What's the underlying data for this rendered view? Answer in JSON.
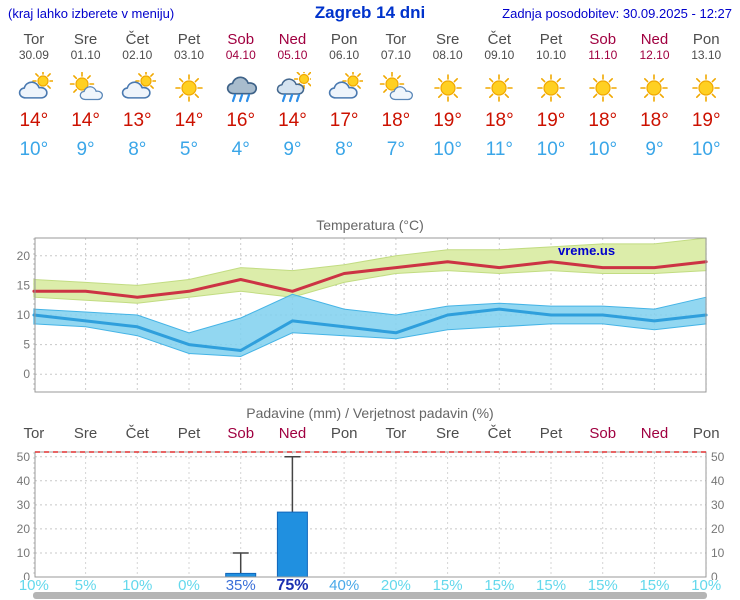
{
  "header": {
    "hint": "(kraj lahko izberete v meniju)",
    "title": "Zagreb 14 dni",
    "updated": "Zadnja posodobitev: 30.09.2025 - 12:27"
  },
  "colors": {
    "header_blue": "#0000cc",
    "title_blue": "#0033cc",
    "weekday": "#4d4d4d",
    "weekend": "#a00040",
    "tmax": "#cc1100",
    "tmin": "#3aa6e8",
    "max_line": "#cc3344",
    "min_line": "#2f9fdc",
    "max_band": "#dcedaa",
    "min_band": "#7fd0ef",
    "bar_blue": "#2090e0"
  },
  "days": [
    {
      "name": "Tor",
      "date": "30.09",
      "weekend": false,
      "icon": "cloud-sun",
      "tmax": "14°",
      "tmin": "10°"
    },
    {
      "name": "Sre",
      "date": "01.10",
      "weekend": false,
      "icon": "sun-cloud",
      "tmax": "14°",
      "tmin": "9°"
    },
    {
      "name": "Čet",
      "date": "02.10",
      "weekend": false,
      "icon": "cloud-sun",
      "tmax": "13°",
      "tmin": "8°"
    },
    {
      "name": "Pet",
      "date": "03.10",
      "weekend": false,
      "icon": "sun",
      "tmax": "14°",
      "tmin": "5°"
    },
    {
      "name": "Sob",
      "date": "04.10",
      "weekend": true,
      "icon": "rain",
      "tmax": "16°",
      "tmin": "4°"
    },
    {
      "name": "Ned",
      "date": "05.10",
      "weekend": true,
      "icon": "rain-sun",
      "tmax": "14°",
      "tmin": "9°"
    },
    {
      "name": "Pon",
      "date": "06.10",
      "weekend": false,
      "icon": "cloud-sun",
      "tmax": "17°",
      "tmin": "8°"
    },
    {
      "name": "Tor",
      "date": "07.10",
      "weekend": false,
      "icon": "sun-cloud",
      "tmax": "18°",
      "tmin": "7°"
    },
    {
      "name": "Sre",
      "date": "08.10",
      "weekend": false,
      "icon": "sun",
      "tmax": "19°",
      "tmin": "10°"
    },
    {
      "name": "Čet",
      "date": "09.10",
      "weekend": false,
      "icon": "sun",
      "tmax": "18°",
      "tmin": "11°"
    },
    {
      "name": "Pet",
      "date": "10.10",
      "weekend": false,
      "icon": "sun",
      "tmax": "19°",
      "tmin": "10°"
    },
    {
      "name": "Sob",
      "date": "11.10",
      "weekend": true,
      "icon": "sun",
      "tmax": "18°",
      "tmin": "10°"
    },
    {
      "name": "Ned",
      "date": "12.10",
      "weekend": true,
      "icon": "sun",
      "tmax": "18°",
      "tmin": "9°"
    },
    {
      "name": "Pon",
      "date": "13.10",
      "weekend": false,
      "icon": "sun",
      "tmax": "19°",
      "tmin": "10°"
    }
  ],
  "chart_data": [
    {
      "type": "line",
      "title": "Temperatura (°C)",
      "watermark": "vreme.us",
      "categories": [
        "Tor",
        "Sre",
        "Čet",
        "Pet",
        "Sob",
        "Ned",
        "Pon",
        "Tor",
        "Sre",
        "Čet",
        "Pet",
        "Sob",
        "Ned",
        "Pon"
      ],
      "ylim": [
        -3,
        23
      ],
      "yticks": [
        0,
        5,
        10,
        15,
        20
      ],
      "grid": true,
      "legend_position": "none",
      "series": [
        {
          "name": "max-temp",
          "color": "#cc3344",
          "width": 3,
          "values": [
            14,
            14,
            13,
            14,
            16,
            14,
            17,
            18,
            19,
            18,
            19,
            18,
            18,
            19
          ]
        },
        {
          "name": "min-temp",
          "color": "#2f9fdc",
          "width": 3,
          "values": [
            10,
            9,
            8,
            5,
            4,
            9,
            8,
            7,
            10,
            11,
            10,
            10,
            9,
            10
          ]
        }
      ],
      "bands": [
        {
          "name": "max-temp-range",
          "fill": "#dcedaa",
          "stroke": "#c2dc82",
          "opacity": 1,
          "high": [
            16,
            15.5,
            15,
            16,
            18,
            17.5,
            18.5,
            20,
            21,
            21,
            21.5,
            22,
            22,
            23
          ],
          "low": [
            13,
            12.5,
            12,
            13,
            14,
            13,
            15.5,
            17,
            17.5,
            17,
            17.5,
            17,
            17,
            17.5
          ]
        },
        {
          "name": "min-temp-range",
          "fill": "#7fd0ef",
          "stroke": "#45b4e6",
          "opacity": 0.85,
          "high": [
            11,
            10.5,
            10,
            7,
            9.5,
            13.5,
            11,
            10,
            11.5,
            12,
            11.5,
            11.5,
            11,
            13
          ],
          "low": [
            8.5,
            8,
            6.5,
            3.5,
            3,
            7,
            6.5,
            6,
            7.5,
            8,
            8.5,
            8.5,
            7.5,
            8.5
          ]
        }
      ]
    },
    {
      "type": "bar",
      "title": "Padavine (mm) / Verjetnost padavin (%)",
      "categories": [
        "Tor",
        "Sre",
        "Čet",
        "Pet",
        "Sob",
        "Ned",
        "Pon",
        "Tor",
        "Sre",
        "Čet",
        "Pet",
        "Sob",
        "Ned",
        "Pon"
      ],
      "ylim": [
        0,
        52
      ],
      "yticks": [
        0,
        10,
        20,
        30,
        40,
        50
      ],
      "grid": true,
      "bar_color": "#2090e0",
      "bar_stroke": "#1166bb",
      "values": [
        0,
        0,
        0,
        0,
        1.5,
        27,
        0,
        0,
        0,
        0,
        0,
        0,
        0,
        0
      ],
      "whiskers": [
        0,
        0,
        0,
        0,
        10,
        50,
        0,
        0,
        0,
        0,
        0,
        0,
        0,
        0
      ],
      "probabilities": [
        {
          "label": "10%",
          "color": "#63d8ec",
          "bold": false
        },
        {
          "label": "5%",
          "color": "#63d8ec",
          "bold": false
        },
        {
          "label": "10%",
          "color": "#63d8ec",
          "bold": false
        },
        {
          "label": "0%",
          "color": "#63d8ec",
          "bold": false
        },
        {
          "label": "35%",
          "color": "#3a6fd8",
          "bold": false
        },
        {
          "label": "75%",
          "color": "#1a2fb0",
          "bold": true
        },
        {
          "label": "40%",
          "color": "#49a8e8",
          "bold": false
        },
        {
          "label": "20%",
          "color": "#63d8ec",
          "bold": false
        },
        {
          "label": "15%",
          "color": "#63d8ec",
          "bold": false
        },
        {
          "label": "15%",
          "color": "#63d8ec",
          "bold": false
        },
        {
          "label": "15%",
          "color": "#63d8ec",
          "bold": false
        },
        {
          "label": "15%",
          "color": "#63d8ec",
          "bold": false
        },
        {
          "label": "15%",
          "color": "#63d8ec",
          "bold": false
        },
        {
          "label": "10%",
          "color": "#63d8ec",
          "bold": false
        }
      ]
    }
  ]
}
